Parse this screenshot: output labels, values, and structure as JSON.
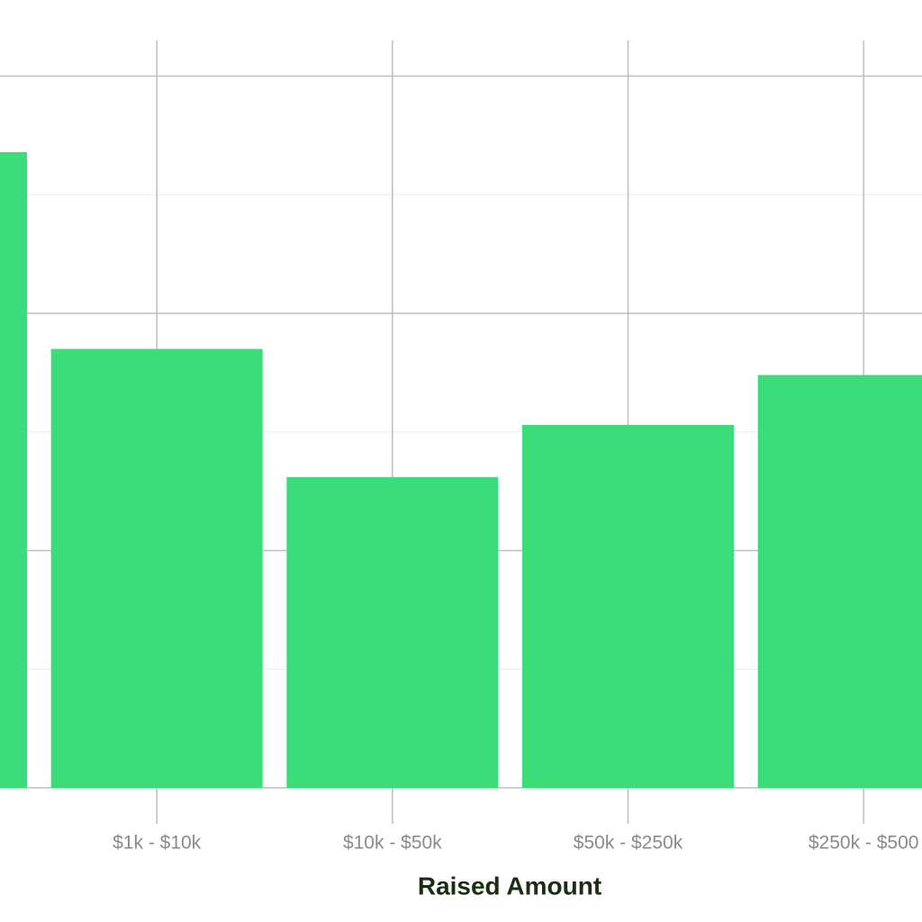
{
  "chart_data": {
    "type": "bar",
    "x_label": "Raised Amount",
    "categories": [
      null,
      "$1k - $10k",
      "$10k - $50k",
      "$50k - $250k",
      "$250k - $500"
    ],
    "values": [
      2.68,
      1.85,
      1.31,
      1.53,
      1.74
    ],
    "color": "#3bdc7a",
    "ylim": [
      0,
      3.15
    ],
    "yticks": [
      0,
      1,
      2,
      3
    ],
    "yminorticks": [
      0.5,
      1.5,
      2.5
    ],
    "grid": true
  }
}
